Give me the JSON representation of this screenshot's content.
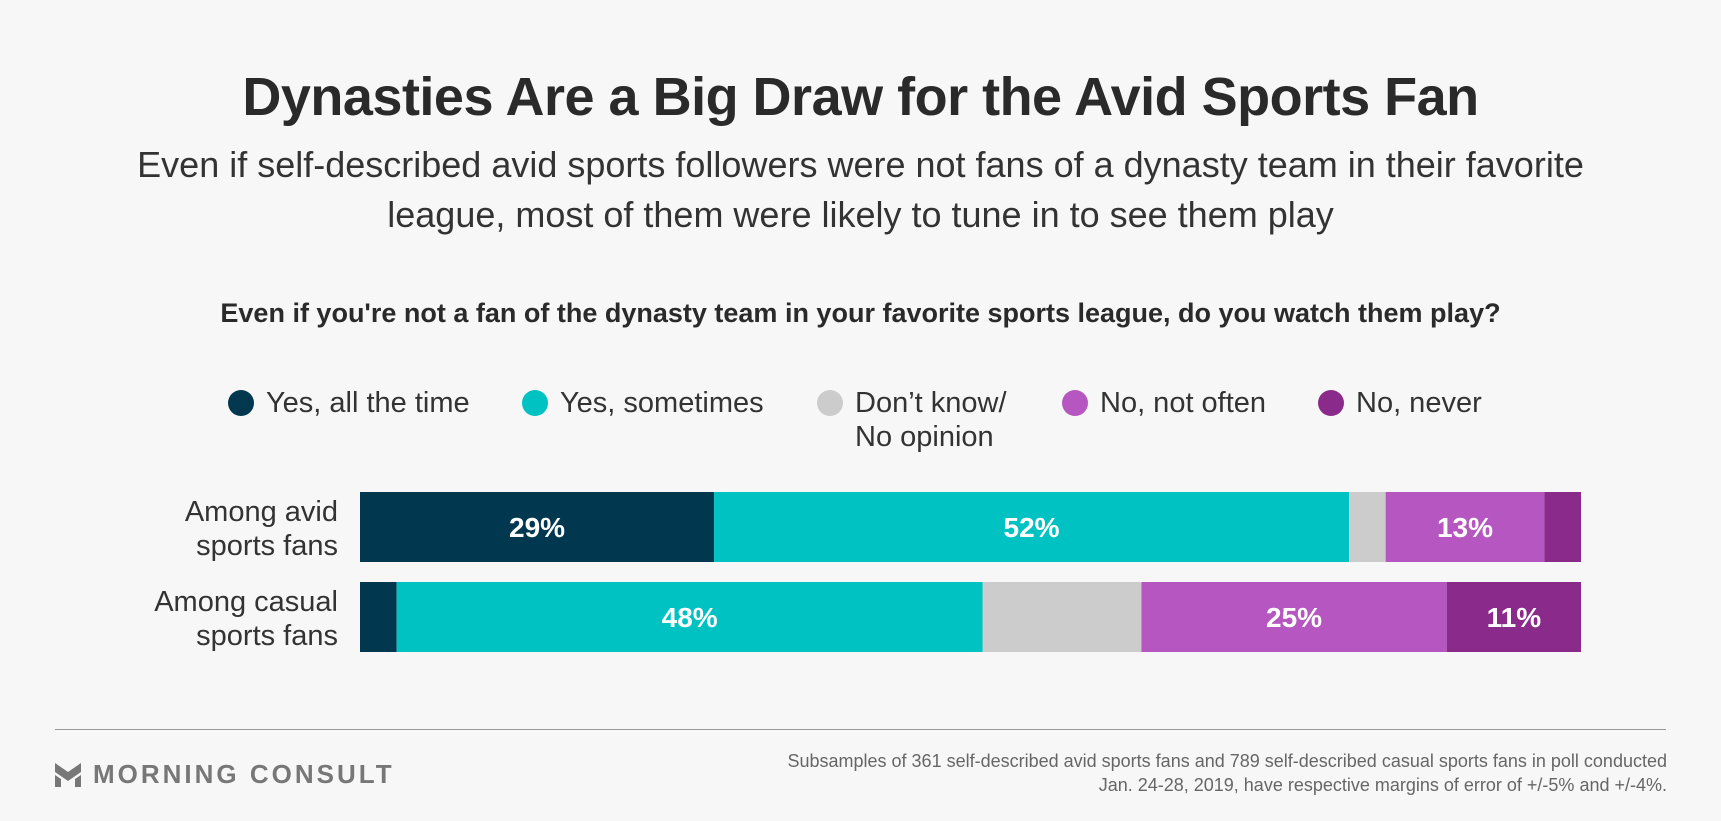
{
  "header": {
    "title": "Dynasties Are a Big Draw for the Avid Sports Fan",
    "subtitle": "Even if self-described avid sports followers were not fans of a dynasty team in their favorite league, most of them were likely to tune in to see them play"
  },
  "chart_data": {
    "type": "bar",
    "orientation": "horizontal",
    "stacked": true,
    "title": "Even if you're not a fan of the dynasty team in your favorite sports league, do you watch them play?",
    "categories": [
      "Among avid\nsports fans",
      "Among casual\nsports fans"
    ],
    "series": [
      {
        "name": "Yes, all the time",
        "color": "#01384f",
        "values": [
          29,
          3
        ],
        "labels": [
          "29%",
          ""
        ]
      },
      {
        "name": "Yes, sometimes",
        "color": "#00c2c2",
        "values": [
          52,
          48
        ],
        "labels": [
          "52%",
          "48%"
        ]
      },
      {
        "name": "Don’t know/\nNo opinion",
        "color": "#cccccc",
        "values": [
          3,
          13
        ],
        "labels": [
          "",
          ""
        ]
      },
      {
        "name": "No, not often",
        "color": "#b556c1",
        "values": [
          13,
          25
        ],
        "labels": [
          "13%",
          "25%"
        ]
      },
      {
        "name": "No, never",
        "color": "#8a2a8a",
        "values": [
          3,
          11
        ],
        "labels": [
          "",
          "11%"
        ]
      }
    ],
    "xlim": [
      0,
      100
    ],
    "legend_position": "top",
    "grid": false
  },
  "footer": {
    "brand": "MORNING CONSULT",
    "brand_icon": "morning-consult-logo-icon",
    "source": "Subsamples of 361 self-described avid sports fans and 789 self-described casual sports fans in poll conducted Jan. 24-28, 2019, have respective margins of error of +/-5% and +/-4%."
  }
}
